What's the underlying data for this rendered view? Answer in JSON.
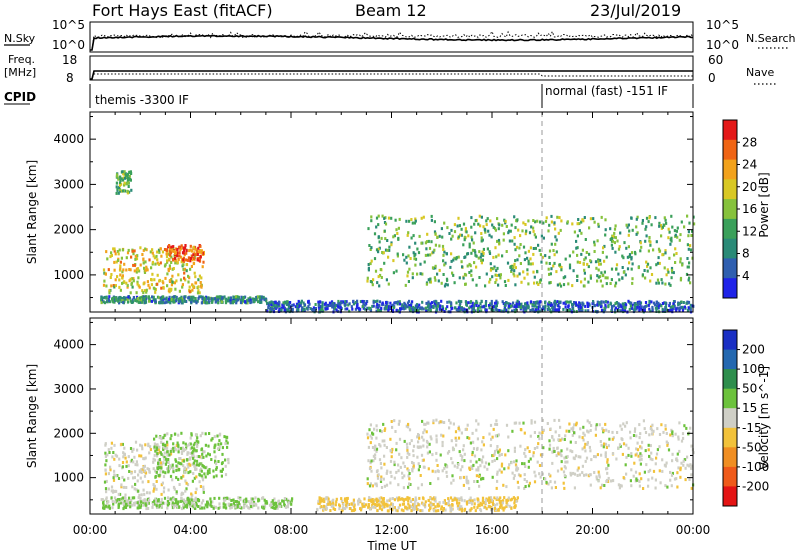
{
  "header": {
    "title": "Fort Hays East (fitACF)",
    "beam": "Beam 12",
    "date": "23/Jul/2019"
  },
  "top_panels": {
    "nsky": {
      "label": "N.Sky",
      "right_label": "N.Search",
      "ticks_left": [
        "10^5",
        "10^0"
      ],
      "ticks_right": [
        "10^5",
        "10^0"
      ]
    },
    "freq": {
      "label_lines": [
        "Freq.",
        "[MHz]"
      ],
      "right_label": "Nave",
      "ticks_left": [
        "18",
        "8"
      ],
      "ticks_right": [
        "60",
        "0"
      ]
    },
    "cpid": {
      "label": "CPID",
      "modes": [
        {
          "name": "themis -3300 IF",
          "start_hour": 0
        },
        {
          "name": "normal (fast) -151 IF",
          "start_hour": 18
        }
      ]
    }
  },
  "colors": {
    "power_scale": [
      "#1f23e8",
      "#2f5fb0",
      "#2a8a77",
      "#3aa05a",
      "#86c23c",
      "#d8c824",
      "#f2a21c",
      "#ef6414",
      "#e41818"
    ],
    "velocity_scale": [
      "#1a2fc4",
      "#2468b0",
      "#2e8e4c",
      "#6cc23c",
      "#cfcfc6",
      "#f2c23a",
      "#f08e22",
      "#ef5a1a",
      "#e41414"
    ],
    "ground_scatter": "#a8a8a8"
  },
  "chart_data": [
    {
      "type": "heatmap",
      "name": "power",
      "ylabel": "Slant Range [km]",
      "ylim": [
        180,
        4600
      ],
      "yticks": [
        1000,
        2000,
        3000,
        4000
      ],
      "xlim": [
        0,
        24
      ],
      "colorbar": {
        "label": "Power [dB]",
        "ticks": [
          4,
          8,
          12,
          16,
          20,
          24,
          28
        ],
        "range": [
          0,
          32
        ]
      },
      "features": [
        {
          "hours": [
            0.4,
            7.0
          ],
          "range_km": [
            380,
            520
          ],
          "value_db": 9
        },
        {
          "hours": [
            0.5,
            4.5
          ],
          "range_km": [
            600,
            1600
          ],
          "value_db": 20
        },
        {
          "hours": [
            3.0,
            4.5
          ],
          "range_km": [
            1300,
            1650
          ],
          "value_db": 27
        },
        {
          "hours": [
            1.0,
            1.6
          ],
          "range_km": [
            2800,
            3300
          ],
          "value_db": 14
        },
        {
          "hours": [
            11.0,
            24.0
          ],
          "range_km": [
            750,
            2300
          ],
          "value_db": 14
        },
        {
          "hours": [
            7.0,
            24.0
          ],
          "range_km": [
            180,
            420
          ],
          "value_db": 6
        }
      ]
    },
    {
      "type": "heatmap",
      "name": "velocity",
      "ylabel": "Slant Range [km]",
      "ylim": [
        180,
        4600
      ],
      "yticks": [
        1000,
        2000,
        3000,
        4000
      ],
      "xlim": [
        0,
        24
      ],
      "xlabel": "Time UT",
      "xticks": [
        "00:00",
        "04:00",
        "08:00",
        "12:00",
        "16:00",
        "20:00",
        "00:00"
      ],
      "colorbar": {
        "label": "Velocity [m s^-1]",
        "ticks": [
          200,
          100,
          50,
          15,
          -15,
          -50,
          -100,
          -200
        ],
        "range": [
          -250,
          250
        ]
      },
      "features": [
        {
          "hours": [
            0.5,
            4.5
          ],
          "range_km": [
            600,
            1800
          ],
          "value_ms": 0
        },
        {
          "hours": [
            2.5,
            5.5
          ],
          "range_km": [
            1000,
            2000
          ],
          "value_ms": 40
        },
        {
          "hours": [
            0.4,
            8.0
          ],
          "range_km": [
            300,
            550
          ],
          "value_ms": 30
        },
        {
          "hours": [
            9.0,
            17.0
          ],
          "range_km": [
            250,
            550
          ],
          "value_ms": -40
        },
        {
          "hours": [
            11.0,
            24.0
          ],
          "range_km": [
            750,
            2300
          ],
          "value_ms": 0
        }
      ]
    }
  ]
}
